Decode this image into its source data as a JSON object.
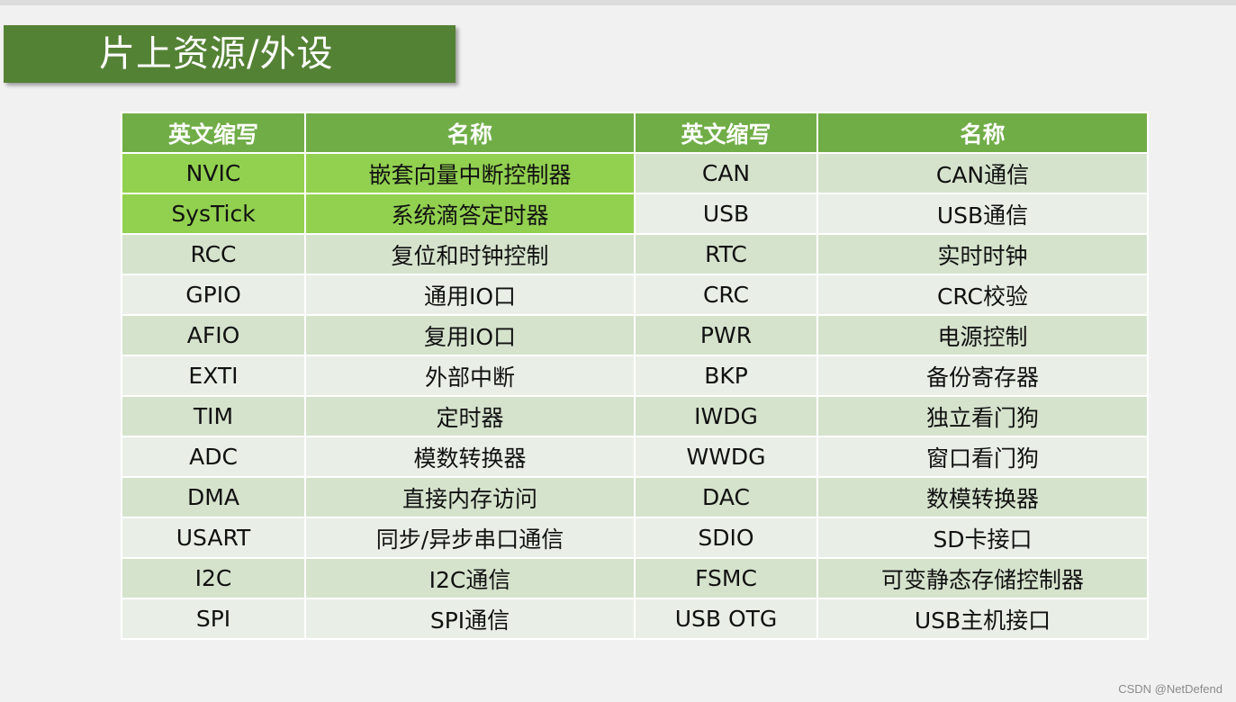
{
  "slide": {
    "title": "片上资源/外设"
  },
  "table": {
    "headers": [
      "英文缩写",
      "名称",
      "英文缩写",
      "名称"
    ],
    "rows": [
      [
        "NVIC",
        "嵌套向量中断控制器",
        "CAN",
        "CAN通信"
      ],
      [
        "SysTick",
        "系统滴答定时器",
        "USB",
        "USB通信"
      ],
      [
        "RCC",
        "复位和时钟控制",
        "RTC",
        "实时时钟"
      ],
      [
        "GPIO",
        "通用IO口",
        "CRC",
        "CRC校验"
      ],
      [
        "AFIO",
        "复用IO口",
        "PWR",
        "电源控制"
      ],
      [
        "EXTI",
        "外部中断",
        "BKP",
        "备份寄存器"
      ],
      [
        "TIM",
        "定时器",
        "IWDG",
        "独立看门狗"
      ],
      [
        "ADC",
        "模数转换器",
        "WWDG",
        "窗口看门狗"
      ],
      [
        "DMA",
        "直接内存访问",
        "DAC",
        "数模转换器"
      ],
      [
        "USART",
        "同步/异步串口通信",
        "SDIO",
        "SD卡接口"
      ],
      [
        "I2C",
        "I2C通信",
        "FSMC",
        "可变静态存储控制器"
      ],
      [
        "SPI",
        "SPI通信",
        "USB OTG",
        "USB主机接口"
      ]
    ]
  },
  "colors": {
    "header_green": "#70ad47",
    "title_green": "#548235",
    "highlight_green": "#92d050",
    "band_dark": "#d5e3cd",
    "band_light": "#e9efe6"
  },
  "watermark": "CSDN @NetDefend"
}
